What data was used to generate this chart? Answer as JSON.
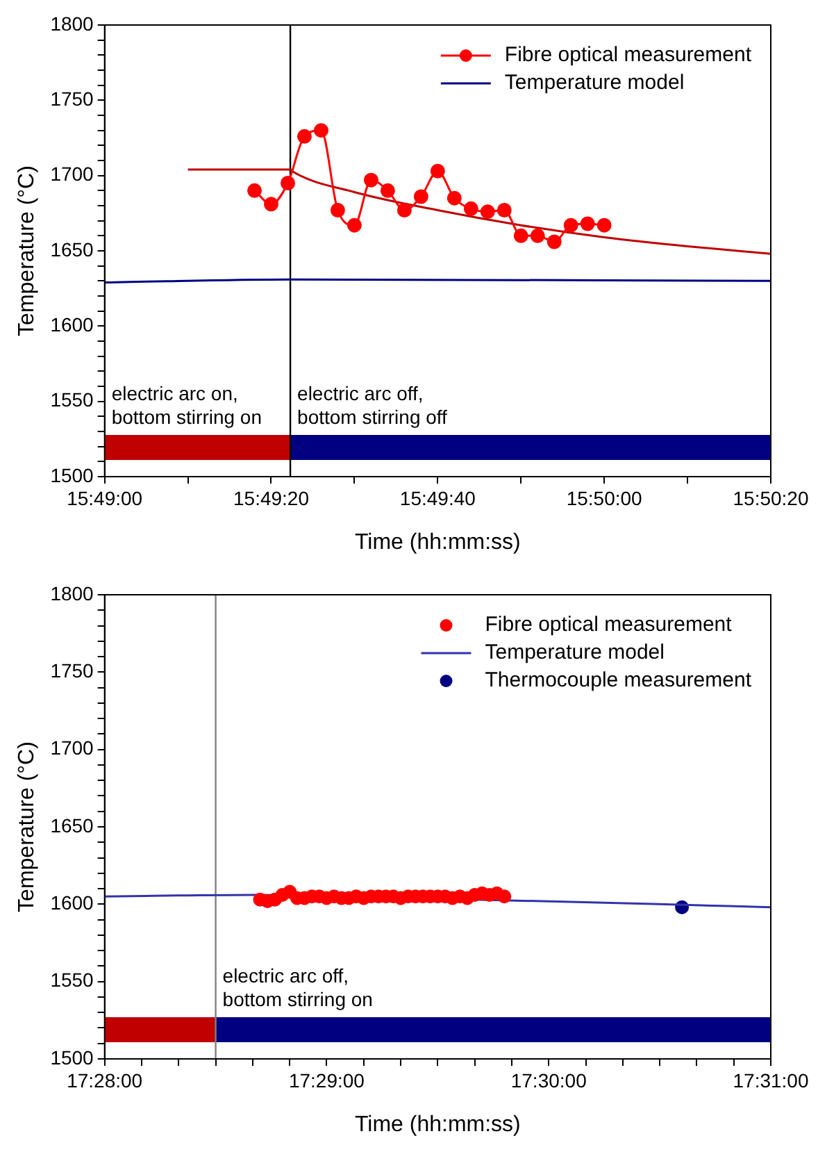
{
  "chart_data": [
    {
      "type": "line",
      "xlabel": "Time (hh:mm:ss)",
      "ylabel": "Temperature (°C)",
      "legend": "top right",
      "grid": false,
      "xlim": [
        15.816667,
        15.838889
      ],
      "xticks": [
        {
          "value": 15.816667,
          "label": "15:49:00"
        },
        {
          "value": 15.819444,
          "label": null
        },
        {
          "value": 15.822222,
          "label": "15:49:20"
        },
        {
          "value": 15.825,
          "label": null
        },
        {
          "value": 15.827778,
          "label": "15:49:40"
        },
        {
          "value": 15.830556,
          "label": null
        },
        {
          "value": 15.833333,
          "label": "15:50:00"
        },
        {
          "value": 15.836111,
          "label": null
        },
        {
          "value": 15.838889,
          "label": "15:50:20"
        }
      ],
      "ylim": [
        1500,
        1800
      ],
      "yticks": [
        1500,
        {
          "value": 1510,
          "label": null
        },
        {
          "value": 1520,
          "label": null
        },
        {
          "value": 1530,
          "label": null
        },
        {
          "value": 1540,
          "label": null
        },
        1550,
        {
          "value": 1560,
          "label": null
        },
        {
          "value": 1570,
          "label": null
        },
        {
          "value": 1580,
          "label": null
        },
        {
          "value": 1590,
          "label": null
        },
        1600,
        {
          "value": 1610,
          "label": null
        },
        {
          "value": 1620,
          "label": null
        },
        {
          "value": 1630,
          "label": null
        },
        {
          "value": 1640,
          "label": null
        },
        1650,
        {
          "value": 1660,
          "label": null
        },
        {
          "value": 1670,
          "label": null
        },
        {
          "value": 1680,
          "label": null
        },
        {
          "value": 1690,
          "label": null
        },
        1700,
        {
          "value": 1710,
          "label": null
        },
        {
          "value": 1720,
          "label": null
        },
        {
          "value": 1730,
          "label": null
        },
        {
          "value": 1740,
          "label": null
        },
        1750,
        {
          "value": 1760,
          "label": null
        },
        {
          "value": 1770,
          "label": null
        },
        {
          "value": 1780,
          "label": null
        },
        {
          "value": 1790,
          "label": null
        },
        1800
      ],
      "series": [
        {
          "name": "Fibre optical measurement",
          "color": "#ff0000",
          "marker": "circle",
          "x": [
            15.821667,
            15.822222,
            15.822778,
            15.823333,
            15.823889,
            15.824444,
            15.825,
            15.825556,
            15.826111,
            15.826667,
            15.827222,
            15.827778,
            15.828333,
            15.828889,
            15.829444,
            15.83,
            15.830556,
            15.831111,
            15.831667,
            15.832222,
            15.832778,
            15.833333
          ],
          "values": [
            1690,
            1681,
            1695,
            1726,
            1730,
            1677,
            1667,
            1697,
            1690,
            1677,
            1686,
            1703,
            1685,
            1678,
            1676,
            1677,
            1660,
            1660,
            1656,
            1667,
            1668,
            1667
          ]
        },
        {
          "name": "Temperature model",
          "color": "#000080",
          "marker": "none",
          "x": [
            15.816667,
            15.822861,
            15.838889
          ],
          "values": [
            1629,
            1631,
            1630
          ]
        },
        {
          "color": "#c00000",
          "marker": "none",
          "x": [
            15.819444,
            15.822861,
            15.822917,
            15.825,
            15.827778,
            15.830556,
            15.833333,
            15.836111,
            15.838889
          ],
          "values": [
            1704,
            1704,
            1703,
            1689,
            1677,
            1667,
            1659,
            1653,
            1648
          ]
        }
      ],
      "ref_lines": [
        {
          "axis": "x",
          "value": 15.822861,
          "color": "#000000"
        }
      ],
      "bands": [
        {
          "axis": "x",
          "from": 15.816667,
          "to": 15.822861,
          "label": "electric arc on,\nbottom stirring on",
          "color": "#c00000"
        },
        {
          "axis": "x",
          "from": 15.822861,
          "to": 15.838889,
          "label": "electric arc off,\nbottom stirring off",
          "color": "#000080"
        }
      ]
    },
    {
      "type": "scatter",
      "xlabel": "Time (hh:mm:ss)",
      "ylabel": "Temperature (°C)",
      "legend": "top right",
      "grid": false,
      "xlim": [
        17.466667,
        17.516667
      ],
      "xticks": [
        {
          "value": 17.466667,
          "label": "17:28:00"
        },
        {
          "value": 17.469444,
          "label": null
        },
        {
          "value": 17.472222,
          "label": null
        },
        {
          "value": 17.475,
          "label": null
        },
        {
          "value": 17.477778,
          "label": null
        },
        {
          "value": 17.480556,
          "label": null
        },
        {
          "value": 17.483333,
          "label": "17:29:00"
        },
        {
          "value": 17.486111,
          "label": null
        },
        {
          "value": 17.488889,
          "label": null
        },
        {
          "value": 17.491667,
          "label": null
        },
        {
          "value": 17.494444,
          "label": null
        },
        {
          "value": 17.497222,
          "label": null
        },
        {
          "value": 17.5,
          "label": "17:30:00"
        },
        {
          "value": 17.502778,
          "label": null
        },
        {
          "value": 17.505556,
          "label": null
        },
        {
          "value": 17.508333,
          "label": null
        },
        {
          "value": 17.511111,
          "label": null
        },
        {
          "value": 17.513889,
          "label": null
        },
        {
          "value": 17.516667,
          "label": "17:31:00"
        }
      ],
      "ylim": [
        1500,
        1800
      ],
      "yticks": [
        1500,
        {
          "value": 1510,
          "label": null
        },
        {
          "value": 1520,
          "label": null
        },
        {
          "value": 1530,
          "label": null
        },
        {
          "value": 1540,
          "label": null
        },
        1550,
        {
          "value": 1560,
          "label": null
        },
        {
          "value": 1570,
          "label": null
        },
        {
          "value": 1580,
          "label": null
        },
        {
          "value": 1590,
          "label": null
        },
        1600,
        {
          "value": 1610,
          "label": null
        },
        {
          "value": 1620,
          "label": null
        },
        {
          "value": 1630,
          "label": null
        },
        {
          "value": 1640,
          "label": null
        },
        1650,
        {
          "value": 1660,
          "label": null
        },
        {
          "value": 1670,
          "label": null
        },
        {
          "value": 1680,
          "label": null
        },
        {
          "value": 1690,
          "label": null
        },
        1700,
        {
          "value": 1710,
          "label": null
        },
        {
          "value": 1720,
          "label": null
        },
        {
          "value": 1730,
          "label": null
        },
        {
          "value": 1740,
          "label": null
        },
        1750,
        {
          "value": 1760,
          "label": null
        },
        {
          "value": 1770,
          "label": null
        },
        {
          "value": 1780,
          "label": null
        },
        {
          "value": 1790,
          "label": null
        },
        1800
      ],
      "series": [
        {
          "name": "Fibre optical measurement",
          "color": "#ff0000",
          "marker": "circle",
          "x": [
            17.478333,
            17.478889,
            17.479444,
            17.48,
            17.480556,
            17.481111,
            17.481667,
            17.482222,
            17.482778,
            17.483333,
            17.483889,
            17.484444,
            17.485,
            17.485556,
            17.486111,
            17.486667,
            17.487222,
            17.487778,
            17.488333,
            17.488889,
            17.489444,
            17.49,
            17.490556,
            17.491111,
            17.491667,
            17.492222,
            17.492778,
            17.493333,
            17.493889,
            17.494444,
            17.495,
            17.495556,
            17.496111,
            17.496667
          ],
          "values": [
            1603,
            1602,
            1603,
            1606,
            1608,
            1604,
            1604,
            1605,
            1605,
            1604,
            1605,
            1604,
            1604,
            1605,
            1604,
            1605,
            1605,
            1605,
            1605,
            1604,
            1605,
            1605,
            1605,
            1605,
            1605,
            1605,
            1604,
            1605,
            1604,
            1606,
            1607,
            1606,
            1607,
            1605
          ]
        },
        {
          "name": "Temperature model",
          "type": "line",
          "color": "#3333aa",
          "marker": "none",
          "x": [
            17.466667,
            17.477778,
            17.494444,
            17.508333,
            17.516667
          ],
          "values": [
            1605,
            1606,
            1603,
            1600,
            1598
          ]
        },
        {
          "name": "Thermocouple measurement",
          "color": "#000080",
          "marker": "circle",
          "x": [
            17.51
          ],
          "values": [
            1598
          ]
        }
      ],
      "ref_lines": [
        {
          "axis": "x",
          "value": 17.475,
          "color": "#808080"
        }
      ],
      "bands": [
        {
          "axis": "x",
          "from": 17.466667,
          "to": 17.475,
          "label": null,
          "color": "#c00000"
        },
        {
          "axis": "x",
          "from": 17.475,
          "to": 17.516667,
          "label": "electric arc off,\nbottom stirring on",
          "color": "#000080"
        }
      ]
    }
  ]
}
